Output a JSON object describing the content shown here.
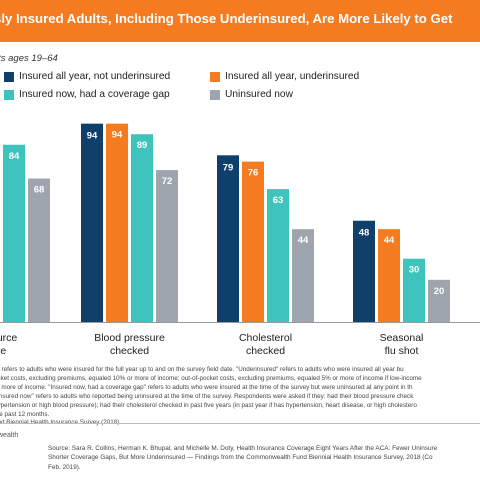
{
  "header": {
    "title": "sly Insured Adults, Including Those Underinsured, Are More Likely to Get"
  },
  "subtitle": "lts ages 19–64",
  "legend": [
    {
      "label": "Insured all year, not underinsured",
      "color": "#0f3f6b"
    },
    {
      "label": "Insured all year, underinsured",
      "color": "#f47b20"
    },
    {
      "label": "Insured now, had a coverage gap",
      "color": "#3fc4bd"
    },
    {
      "label": "Uninsured now",
      "color": "#9ea5ae"
    }
  ],
  "chart_data": {
    "type": "bar",
    "categories": [
      {
        "line1": "source",
        "line2": "re"
      },
      {
        "line1": "Blood pressure",
        "line2": "checked"
      },
      {
        "line1": "Cholesterol",
        "line2": "checked"
      },
      {
        "line1": "Seasonal",
        "line2": "flu shot"
      }
    ],
    "series": [
      {
        "name": "Insured all year, not underinsured",
        "values": [
          null,
          94,
          79,
          48
        ]
      },
      {
        "name": "Insured all year, underinsured",
        "values": [
          null,
          94,
          76,
          44
        ]
      },
      {
        "name": "Insured now, had a coverage gap",
        "values": [
          84,
          89,
          63,
          30
        ]
      },
      {
        "name": "Uninsured now",
        "values": [
          68,
          72,
          44,
          20
        ]
      }
    ],
    "ylim": [
      0,
      100
    ],
    "grid": false,
    "legend_position": "top"
  },
  "notes": [
    "d\" refers to adults who were insured for the full year up to and on the survey field date. \"Underinsured\" refers to adults who were insured all year bu",
    "ocket costs, excluding premiums, equaled 10% or more of income; out-of-pocket costs, excluding premiums, equaled 5% or more of income if low-income",
    "or more of income. \"Insured now, had a coverage gap\" refers to adults who were insured at the time of the survey but were uninsured at any point in th",
    "ninsured now\" refers to adults who reported being uninsured at the time of the survey. Respondents were asked if they: had their blood pressure check",
    "hypertension or high blood pressure); had their cholesterol checked in past five years (in past year if has hypertension, heart disease, or high cholestero",
    "the past 12 months.",
    "",
    "und Biennial Health Insurance Survey (2018)."
  ],
  "source": {
    "lines": [
      "Source: Sara R. Collins, Herman K. Bhupal, and Michelle M. Doty, Health Insurance Coverage Eight Years After the ACA: Fewer Uninsure",
      "Shorter Coverage Gaps, But More Underinsured — Findings from the Commonwealth Fund Biennial Health Insurance Survey, 2018 (Co",
      "Feb. 2019)."
    ]
  },
  "brand": "wealth"
}
